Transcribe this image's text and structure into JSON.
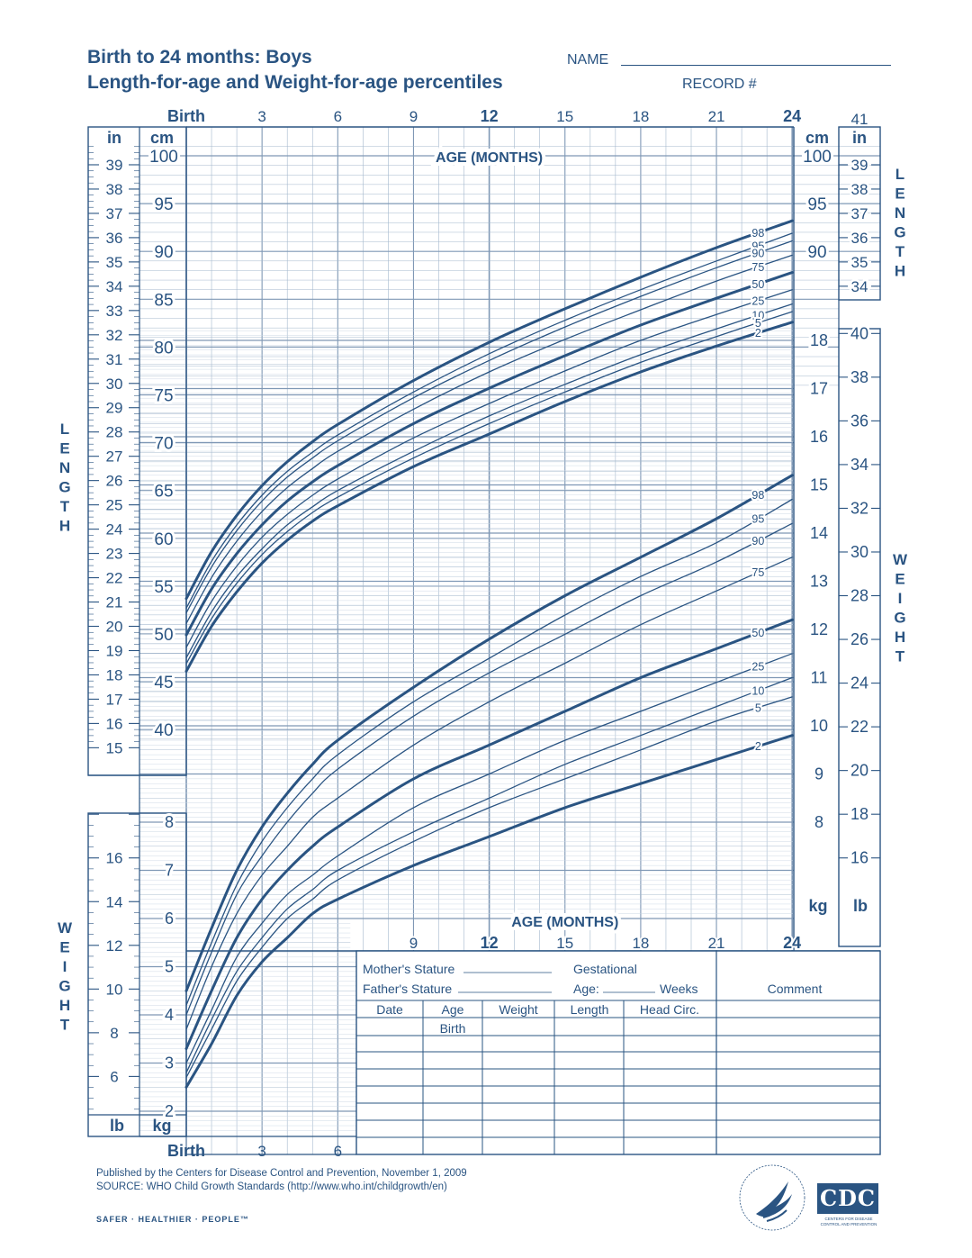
{
  "title": {
    "line1": "Birth to 24 months: Boys",
    "line2": "Length-for-age and Weight-for-age percentiles"
  },
  "header": {
    "name_label": "NAME",
    "record_label": "RECORD #"
  },
  "labels": {
    "birth": "Birth",
    "age_months": "AGE (MONTHS)",
    "cm": "cm",
    "in": "in",
    "kg": "kg",
    "lb": "lb",
    "length_vertical": "LENGTH",
    "weight_vertical": "WEIGHT",
    "top_right_41": "41"
  },
  "axes": {
    "age_ticks": [
      {
        "m": 0,
        "label": "Birth"
      },
      {
        "m": 3,
        "label": "3"
      },
      {
        "m": 6,
        "label": "6"
      },
      {
        "m": 9,
        "label": "9"
      },
      {
        "m": 12,
        "label": "12"
      },
      {
        "m": 15,
        "label": "15"
      },
      {
        "m": 18,
        "label": "18"
      },
      {
        "m": 21,
        "label": "21"
      },
      {
        "m": 24,
        "label": "24"
      }
    ],
    "age_ticks_weight_mid": [
      "9",
      "12",
      "15",
      "18",
      "21",
      "24"
    ],
    "age_ticks_bottom": [
      "Birth",
      "3",
      "6"
    ],
    "length_cm_left": [
      100,
      95,
      90,
      85,
      80,
      75,
      70,
      65,
      60,
      55,
      50,
      45,
      40
    ],
    "length_cm_right": [
      100,
      95,
      90
    ],
    "length_in_left": [
      39,
      38,
      37,
      36,
      35,
      34,
      33,
      32,
      31,
      30,
      29,
      28,
      27,
      26,
      25,
      24,
      23,
      22,
      21,
      20,
      19,
      18,
      17,
      16,
      15
    ],
    "length_in_right": [
      39,
      38,
      37,
      36,
      35,
      34
    ],
    "weight_kg_right": [
      18,
      17,
      16,
      15,
      14,
      13,
      12,
      11,
      10,
      9,
      8
    ],
    "weight_kg_left": [
      8,
      7,
      6,
      5,
      4,
      3,
      2
    ],
    "weight_lb_right": [
      40,
      38,
      36,
      34,
      32,
      30,
      28,
      26,
      24,
      22,
      20,
      18,
      16
    ],
    "weight_lb_left": [
      16,
      14,
      12,
      10,
      8,
      6
    ]
  },
  "chart_data": {
    "type": "line",
    "title": "Birth to 24 months: Boys — Length-for-age and Weight-for-age percentiles",
    "x_label": "AGE (MONTHS)",
    "x": [
      0,
      1,
      2,
      3,
      4,
      5,
      6,
      9,
      12,
      15,
      18,
      21,
      24
    ],
    "length_for_age": {
      "ylabel": "LENGTH",
      "unit": "cm",
      "ylim": [
        38,
        102
      ],
      "series": [
        {
          "name": "98",
          "values": [
            53.7,
            58.6,
            62.4,
            65.5,
            68.0,
            70.1,
            71.9,
            76.5,
            80.5,
            84.0,
            87.3,
            90.4,
            93.2
          ]
        },
        {
          "name": "95",
          "values": [
            52.7,
            57.6,
            61.4,
            64.5,
            67.0,
            69.0,
            70.8,
            75.3,
            79.3,
            82.8,
            86.0,
            89.0,
            91.9
          ]
        },
        {
          "name": "90",
          "values": [
            52.2,
            57.0,
            60.8,
            63.9,
            66.4,
            68.4,
            70.2,
            74.7,
            78.6,
            82.1,
            85.3,
            88.3,
            91.1
          ]
        },
        {
          "name": "75",
          "values": [
            51.1,
            55.9,
            59.7,
            62.8,
            65.3,
            67.3,
            69.1,
            73.5,
            77.4,
            80.8,
            83.9,
            86.9,
            89.6
          ]
        },
        {
          "name": "50",
          "values": [
            49.9,
            54.7,
            58.4,
            61.4,
            63.9,
            65.9,
            67.6,
            72.0,
            75.7,
            79.1,
            82.3,
            85.1,
            87.8
          ]
        },
        {
          "name": "25",
          "values": [
            48.6,
            53.4,
            57.1,
            60.1,
            62.5,
            64.5,
            66.2,
            70.5,
            74.1,
            77.5,
            80.7,
            83.4,
            86.0
          ]
        },
        {
          "name": "10",
          "values": [
            47.5,
            52.3,
            56.0,
            58.9,
            61.4,
            63.3,
            65.0,
            69.1,
            72.8,
            76.1,
            79.2,
            81.9,
            84.5
          ]
        },
        {
          "name": "5",
          "values": [
            46.9,
            51.6,
            55.3,
            58.3,
            60.7,
            62.7,
            64.3,
            68.4,
            72.0,
            75.3,
            78.4,
            81.1,
            83.7
          ]
        },
        {
          "name": "2",
          "values": [
            46.1,
            50.8,
            54.4,
            57.4,
            59.8,
            61.8,
            63.4,
            67.5,
            70.9,
            74.3,
            77.4,
            80.1,
            82.6
          ]
        }
      ]
    },
    "weight_for_age": {
      "ylabel": "WEIGHT",
      "unit": "kg",
      "ylim": [
        1.6,
        18.6
      ],
      "series": [
        {
          "name": "98",
          "values": [
            4.5,
            5.8,
            7.0,
            7.9,
            8.6,
            9.2,
            9.7,
            10.8,
            11.8,
            12.7,
            13.5,
            14.3,
            15.2
          ]
        },
        {
          "name": "95",
          "values": [
            4.2,
            5.5,
            6.7,
            7.6,
            8.3,
            8.9,
            9.4,
            10.5,
            11.4,
            12.3,
            13.1,
            13.8,
            14.7
          ]
        },
        {
          "name": "90",
          "values": [
            4.0,
            5.3,
            6.5,
            7.3,
            8.0,
            8.6,
            9.1,
            10.2,
            11.1,
            11.9,
            12.7,
            13.4,
            14.2
          ]
        },
        {
          "name": "75",
          "values": [
            3.7,
            5.0,
            6.1,
            6.9,
            7.5,
            8.1,
            8.5,
            9.6,
            10.5,
            11.3,
            12.1,
            12.8,
            13.5
          ]
        },
        {
          "name": "50",
          "values": [
            3.3,
            4.5,
            5.6,
            6.4,
            7.0,
            7.5,
            7.9,
            8.9,
            9.6,
            10.3,
            11.0,
            11.6,
            12.2
          ]
        },
        {
          "name": "25",
          "values": [
            3.0,
            4.1,
            5.2,
            5.9,
            6.5,
            6.9,
            7.3,
            8.3,
            9.0,
            9.7,
            10.3,
            10.9,
            11.5
          ]
        },
        {
          "name": "10",
          "values": [
            2.8,
            3.9,
            4.9,
            5.6,
            6.2,
            6.6,
            7.0,
            7.8,
            8.5,
            9.2,
            9.8,
            10.4,
            11.0
          ]
        },
        {
          "name": "5",
          "values": [
            2.7,
            3.7,
            4.7,
            5.4,
            6.0,
            6.4,
            6.8,
            7.6,
            8.3,
            8.9,
            9.5,
            10.1,
            10.6
          ]
        },
        {
          "name": "2",
          "values": [
            2.5,
            3.4,
            4.4,
            5.1,
            5.6,
            6.1,
            6.4,
            7.1,
            7.7,
            8.3,
            8.8,
            9.3,
            9.8
          ]
        }
      ]
    }
  },
  "record_table": {
    "mothers_stature": "Mother's Stature",
    "fathers_stature": "Father's Stature",
    "gestational": "Gestational",
    "age": "Age:",
    "weeks": "Weeks",
    "comment": "Comment",
    "columns": [
      "Date",
      "Age",
      "Weight",
      "Length",
      "Head Circ."
    ],
    "first_age_value": "Birth",
    "blank_rows": 7
  },
  "footer": {
    "published": "Published by the Centers for Disease Control and Prevention, November 1, 2009",
    "source": "SOURCE:  WHO Child Growth Standards (http://www.who.int/childgrowth/en)",
    "slogan": "SAFER · HEALTHIER · PEOPLE™",
    "cdc_logo": "CDC",
    "cdc_tagline": "CENTERS FOR DISEASE CONTROL AND PREVENTION",
    "hhs_logo": "hhs-eagle-seal",
    "hhs_seal_text": "DEPARTMENT OF HEALTH & HUMAN SERVICES · USA"
  },
  "colors": {
    "ink": "#2a5482",
    "grid_fine": "#a4b8cd",
    "grid_mid": "#7f98b5",
    "background": "#ffffff"
  }
}
